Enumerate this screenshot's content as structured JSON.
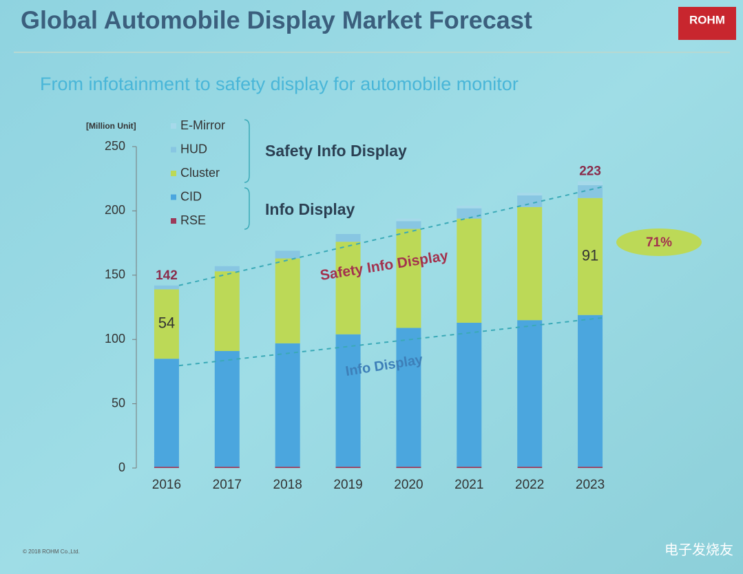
{
  "chart_data": {
    "type": "stacked_bar",
    "title": "Global Automobile Display Market Forecast",
    "subtitle": "From infotainment to safety display for automobile monitor",
    "y_label": "[Million Unit]",
    "categories": [
      "2016",
      "2017",
      "2018",
      "2019",
      "2020",
      "2021",
      "2022",
      "2023"
    ],
    "series": [
      {
        "name": "RSE",
        "color": "#9c3a5a",
        "values": [
          1,
          1,
          1,
          1,
          1,
          1,
          1,
          1
        ]
      },
      {
        "name": "CID",
        "color": "#4ba6de",
        "values": [
          84,
          90,
          96,
          103,
          108,
          112,
          114,
          118
        ]
      },
      {
        "name": "Cluster",
        "color": "#bcd957",
        "values": [
          54,
          62,
          66,
          72,
          77,
          81,
          88,
          91
        ],
        "value_labels": [
          "54",
          null,
          null,
          null,
          null,
          null,
          null,
          "91"
        ]
      },
      {
        "name": "HUD",
        "color": "#88c6e2",
        "values": [
          3,
          4,
          6,
          6,
          6,
          8,
          9,
          10
        ]
      },
      {
        "name": "E-Mirror",
        "color": "#a6d9ea",
        "values": [
          0,
          0,
          0,
          0,
          2,
          2,
          2,
          3
        ]
      }
    ],
    "totals": [
      142,
      null,
      null,
      null,
      null,
      null,
      null,
      223
    ],
    "legend_groups": [
      "Safety Info Display",
      "Info Display"
    ],
    "trend_labels": [
      "Safety Info Display",
      "Info Display"
    ],
    "growth_label": "71%",
    "logo": "ROHM",
    "copyright": "© 2018 ROHM Co.,Ltd.",
    "watermark": "电子发烧友",
    "ylim": [
      0,
      250
    ],
    "yticks": [
      0,
      50,
      100,
      150,
      200,
      250
    ],
    "grid": false
  }
}
